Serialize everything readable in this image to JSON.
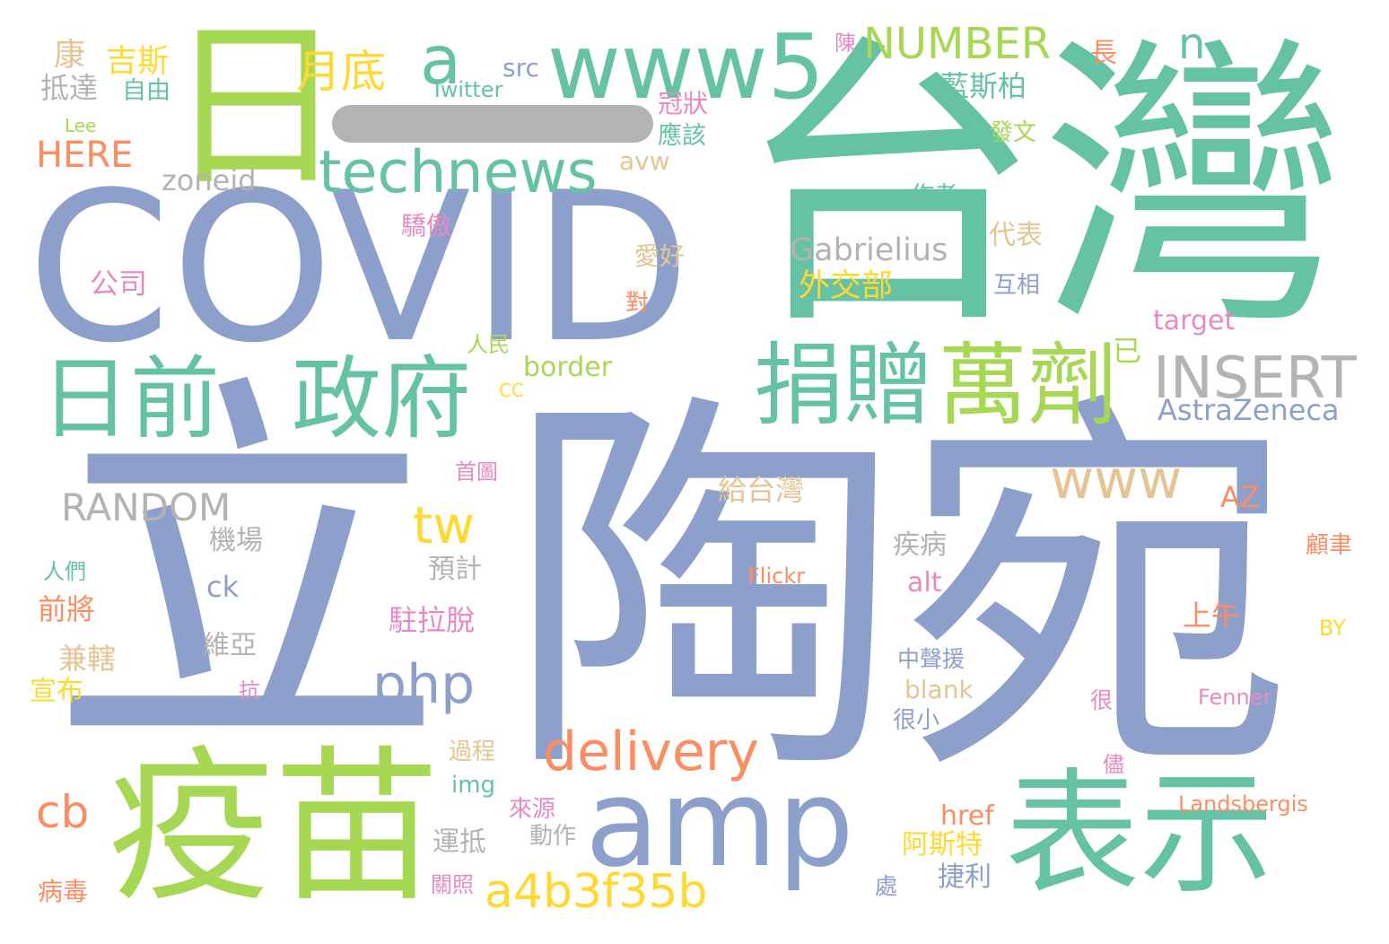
{
  "colors": {
    "slate_blue": "#8da0cb",
    "teal": "#66c2a5",
    "lime": "#a6d854",
    "orange": "#fc8d62",
    "gold": "#ffd92f",
    "gray": "#b3b3b3",
    "tan": "#e5c494",
    "pink": "#e78ac3"
  },
  "redaction_bar_color": "#b3b3b3",
  "words": [
    {
      "text": "立",
      "color": "slate_blue"
    },
    {
      "text": "陶宛",
      "color": "slate_blue"
    },
    {
      "text": "台灣",
      "color": "teal"
    },
    {
      "text": "COVID",
      "color": "slate_blue"
    },
    {
      "text": "日",
      "color": "lime"
    },
    {
      "text": "疫苗",
      "color": "lime"
    },
    {
      "text": "表示",
      "color": "teal"
    },
    {
      "text": "amp",
      "color": "slate_blue"
    },
    {
      "text": "www5",
      "color": "teal"
    },
    {
      "text": "日前",
      "color": "teal"
    },
    {
      "text": "政府",
      "color": "teal"
    },
    {
      "text": "捐贈",
      "color": "teal"
    },
    {
      "text": "萬劑",
      "color": "lime"
    },
    {
      "text": "technews",
      "color": "teal"
    },
    {
      "text": "a",
      "color": "teal"
    },
    {
      "text": "月底",
      "color": "gold"
    },
    {
      "text": "NUMBER",
      "color": "lime"
    },
    {
      "text": "n",
      "color": "teal"
    },
    {
      "text": "INSERT",
      "color": "gray"
    },
    {
      "text": "www",
      "color": "tan"
    },
    {
      "text": "delivery",
      "color": "orange"
    },
    {
      "text": "a4b3f35b",
      "color": "gold"
    },
    {
      "text": "php",
      "color": "slate_blue"
    },
    {
      "text": "tw",
      "color": "gold"
    },
    {
      "text": "cb",
      "color": "orange"
    },
    {
      "text": "RANDOM",
      "color": "gray"
    },
    {
      "text": "Gabrielius",
      "color": "gray"
    },
    {
      "text": "外交部",
      "color": "gold"
    },
    {
      "text": "AstraZeneca",
      "color": "slate_blue"
    },
    {
      "text": "給台灣",
      "color": "tan"
    },
    {
      "text": "AZ",
      "color": "orange"
    },
    {
      "text": "HERE",
      "color": "orange"
    },
    {
      "text": "康",
      "color": "tan"
    },
    {
      "text": "吉斯",
      "color": "gold"
    },
    {
      "text": "抵達",
      "color": "gray"
    },
    {
      "text": "自由",
      "color": "teal"
    },
    {
      "text": "src",
      "color": "slate_blue"
    },
    {
      "text": "Twitter",
      "color": "teal"
    },
    {
      "text": "Lee",
      "color": "lime"
    },
    {
      "text": "zoneid",
      "color": "gray"
    },
    {
      "text": "avw",
      "color": "tan"
    },
    {
      "text": "冠狀",
      "color": "pink"
    },
    {
      "text": "應該",
      "color": "teal"
    },
    {
      "text": "陳",
      "color": "pink"
    },
    {
      "text": "長",
      "color": "orange"
    },
    {
      "text": "藍斯柏",
      "color": "teal"
    },
    {
      "text": "發文",
      "color": "lime"
    },
    {
      "text": "作者",
      "color": "teal"
    },
    {
      "text": "驕傲",
      "color": "pink"
    },
    {
      "text": "公司",
      "color": "pink"
    },
    {
      "text": "愛好",
      "color": "tan"
    },
    {
      "text": "對",
      "color": "orange"
    },
    {
      "text": "代表",
      "color": "tan"
    },
    {
      "text": "互相",
      "color": "slate_blue"
    },
    {
      "text": "target",
      "color": "pink"
    },
    {
      "text": "已",
      "color": "lime"
    },
    {
      "text": "人民",
      "color": "lime"
    },
    {
      "text": "border",
      "color": "lime"
    },
    {
      "text": "CC",
      "color": "gold"
    },
    {
      "text": "首圖",
      "color": "pink"
    },
    {
      "text": "機場",
      "color": "gray"
    },
    {
      "text": "預計",
      "color": "gray"
    },
    {
      "text": "疾病",
      "color": "gray"
    },
    {
      "text": "alt",
      "color": "pink"
    },
    {
      "text": "人們",
      "color": "teal"
    },
    {
      "text": "ck",
      "color": "slate_blue"
    },
    {
      "text": "前將",
      "color": "orange"
    },
    {
      "text": "駐拉脫",
      "color": "pink"
    },
    {
      "text": "上午",
      "color": "orange"
    },
    {
      "text": "維亞",
      "color": "gray"
    },
    {
      "text": "兼轄",
      "color": "tan"
    },
    {
      "text": "宣布",
      "color": "gold"
    },
    {
      "text": "抗",
      "color": "pink"
    },
    {
      "text": "中聲援",
      "color": "slate_blue"
    },
    {
      "text": "blank",
      "color": "tan"
    },
    {
      "text": "很小",
      "color": "slate_blue"
    },
    {
      "text": "很",
      "color": "pink"
    },
    {
      "text": "Flickr",
      "color": "orange"
    },
    {
      "text": "Fenner",
      "color": "pink"
    },
    {
      "text": "顧聿",
      "color": "orange"
    },
    {
      "text": "BY",
      "color": "gold"
    },
    {
      "text": "過程",
      "color": "tan"
    },
    {
      "text": "img",
      "color": "teal"
    },
    {
      "text": "儘",
      "color": "pink"
    },
    {
      "text": "來源",
      "color": "pink"
    },
    {
      "text": "動作",
      "color": "gray"
    },
    {
      "text": "href",
      "color": "orange"
    },
    {
      "text": "阿斯特",
      "color": "gold"
    },
    {
      "text": "Landsbergis",
      "color": "orange"
    },
    {
      "text": "運抵",
      "color": "gray"
    },
    {
      "text": "捷利",
      "color": "slate_blue"
    },
    {
      "text": "處",
      "color": "slate_blue"
    },
    {
      "text": "病毒",
      "color": "orange"
    },
    {
      "text": "關照",
      "color": "pink"
    }
  ]
}
